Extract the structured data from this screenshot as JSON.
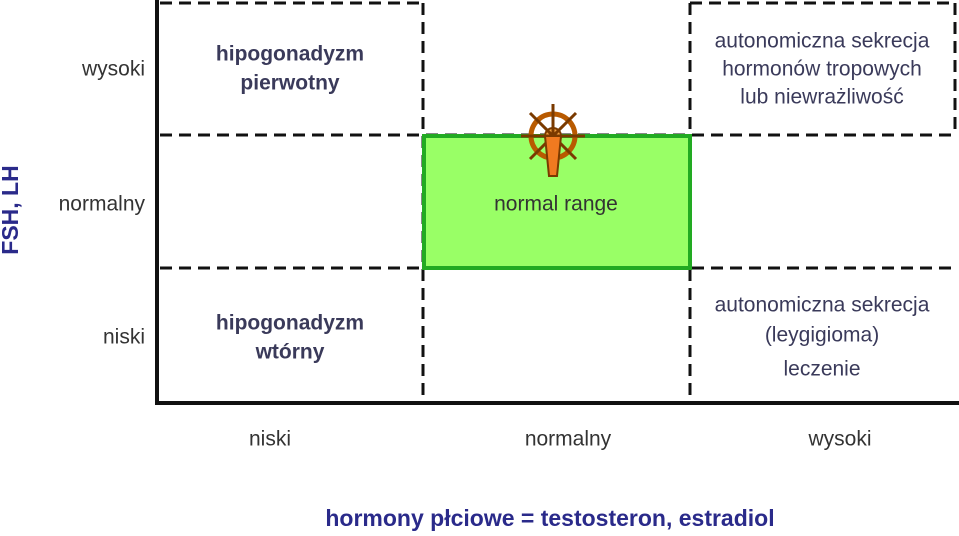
{
  "y_axis_label": "FSH, LH",
  "x_axis_label": "hormony płciowe = testosteron, estradiol",
  "row_labels": [
    "wysoki",
    "normalny",
    "niski"
  ],
  "column_labels": [
    "niski",
    "normalny",
    "wysoki"
  ],
  "cells": {
    "high_low": [
      "hipogonadyzm",
      "pierwotny"
    ],
    "high_high": [
      "autonomiczna sekrecja",
      "hormonów tropowych",
      "lub niewrażliwość"
    ],
    "normal_normal": [
      "normal range"
    ],
    "low_low": [
      "hipogonadyzm",
      "wtórny"
    ],
    "low_high": [
      "autonomiczna sekrecja",
      "(leygigioma)",
      "leczenie"
    ]
  }
}
